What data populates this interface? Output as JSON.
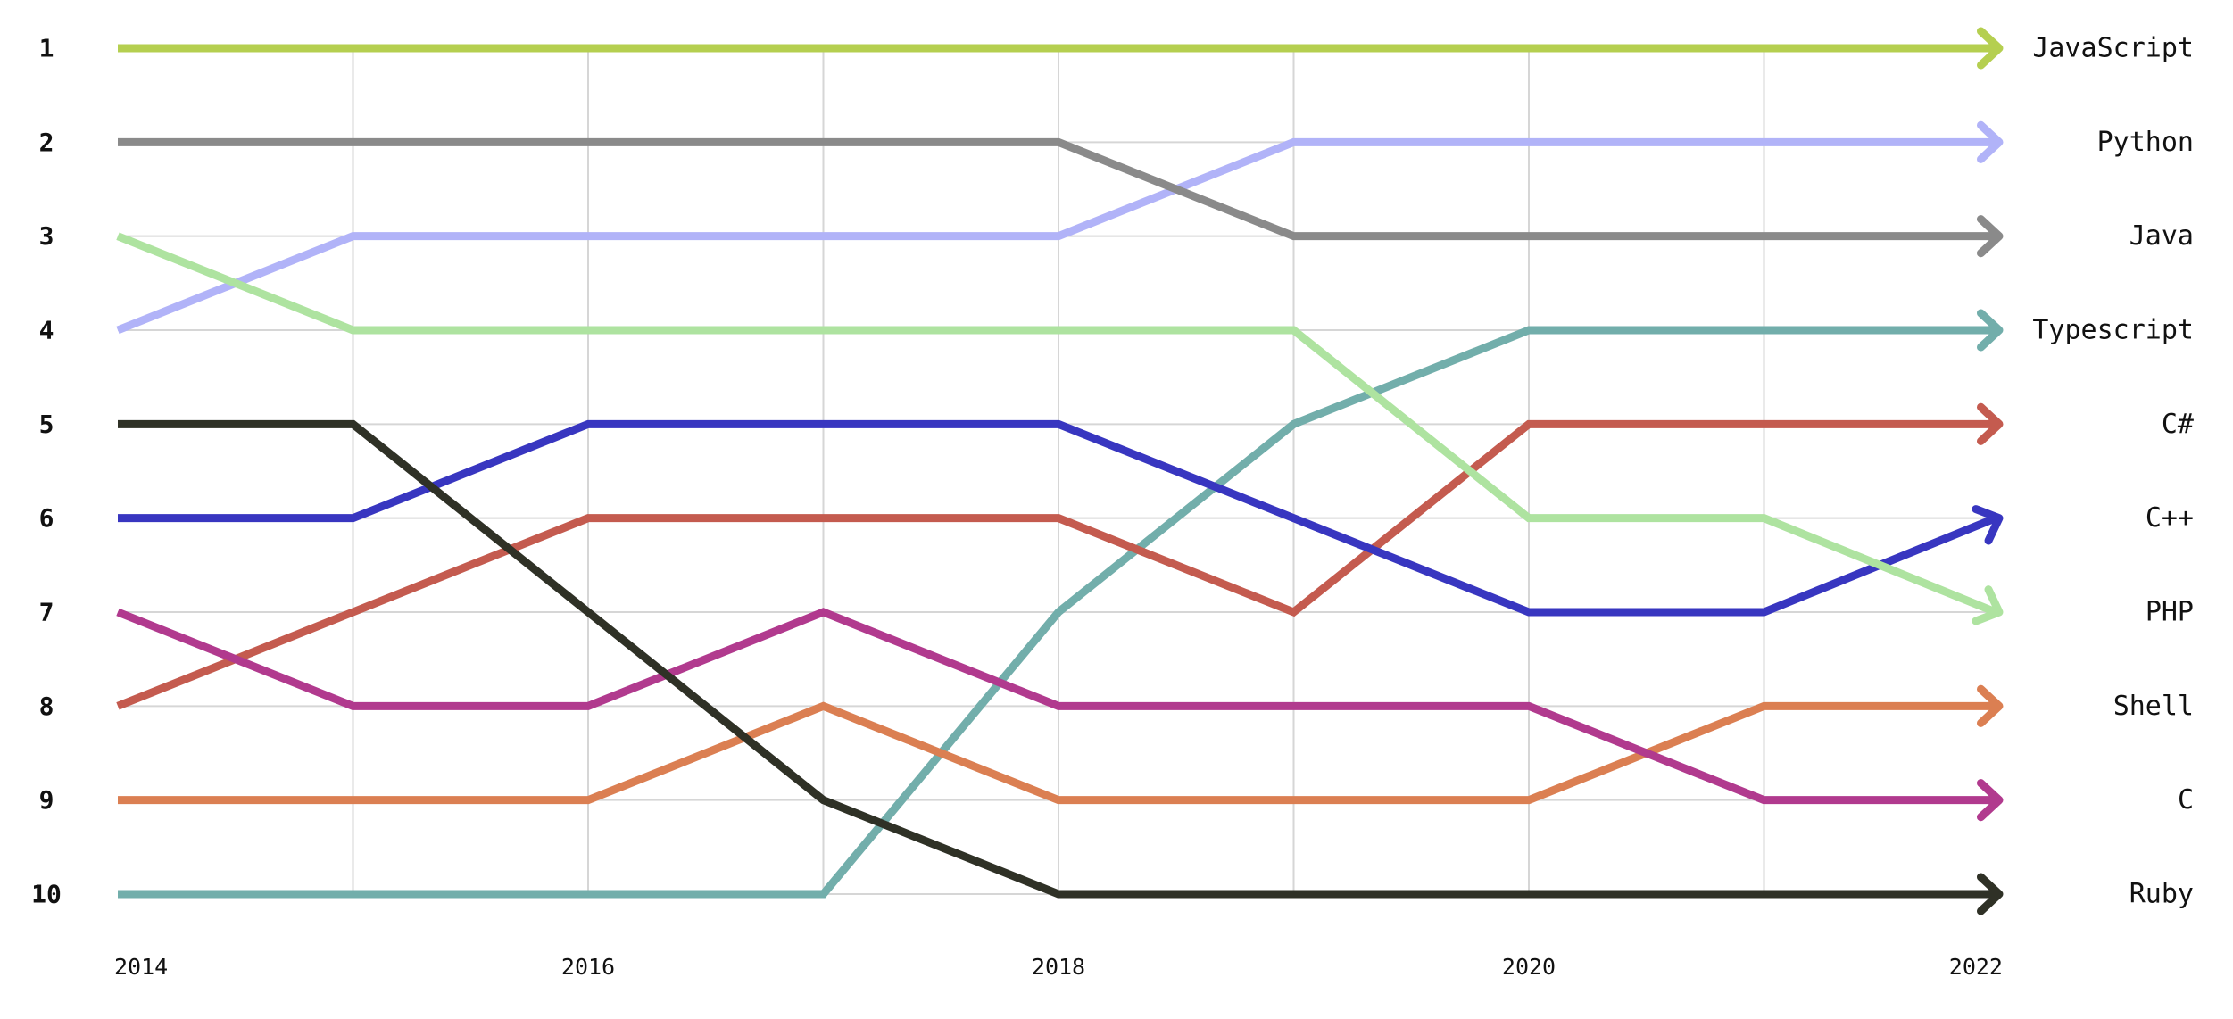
{
  "chart_data": {
    "type": "line",
    "x": [
      2014,
      2015,
      2016,
      2017,
      2018,
      2019,
      2020,
      2021,
      2022
    ],
    "x_tick_labels": [
      "2014",
      "2016",
      "2018",
      "2020",
      "2022"
    ],
    "y_tick_labels": [
      "1",
      "2",
      "3",
      "4",
      "5",
      "6",
      "7",
      "8",
      "9",
      "10"
    ],
    "ylim": [
      1,
      10
    ],
    "y_inverted": true,
    "grid": true,
    "legend": "right (labels at line ends)",
    "series": [
      {
        "name": "JavaScript",
        "color": "#b5cf50",
        "values": [
          1,
          1,
          1,
          1,
          1,
          1,
          1,
          1,
          1
        ]
      },
      {
        "name": "Python",
        "color": "#b1b3f8",
        "values": [
          4,
          3,
          3,
          3,
          3,
          2,
          2,
          2,
          2
        ]
      },
      {
        "name": "Java",
        "color": "#8a8a8a",
        "values": [
          2,
          2,
          2,
          2,
          2,
          3,
          3,
          3,
          3
        ]
      },
      {
        "name": "Typescript",
        "color": "#72aeab",
        "values": [
          10,
          10,
          10,
          10,
          7,
          5,
          4,
          4,
          4
        ]
      },
      {
        "name": "C#",
        "color": "#c45b4f",
        "values": [
          8,
          7,
          6,
          6,
          6,
          7,
          5,
          5,
          5
        ]
      },
      {
        "name": "C++",
        "color": "#3836c0",
        "values": [
          6,
          6,
          5,
          5,
          5,
          6,
          7,
          7,
          6
        ]
      },
      {
        "name": "PHP",
        "color": "#aee3a0",
        "values": [
          3,
          4,
          4,
          4,
          4,
          4,
          6,
          6,
          7
        ]
      },
      {
        "name": "Shell",
        "color": "#db7f52",
        "values": [
          9,
          9,
          9,
          8,
          9,
          9,
          9,
          8,
          8
        ]
      },
      {
        "name": "C",
        "color": "#b13a8e",
        "values": [
          7,
          8,
          8,
          7,
          8,
          8,
          8,
          9,
          9
        ]
      },
      {
        "name": "Ruby",
        "color": "#2f3126",
        "values": [
          5,
          5,
          7,
          9,
          10,
          10,
          10,
          10,
          10
        ]
      }
    ]
  }
}
